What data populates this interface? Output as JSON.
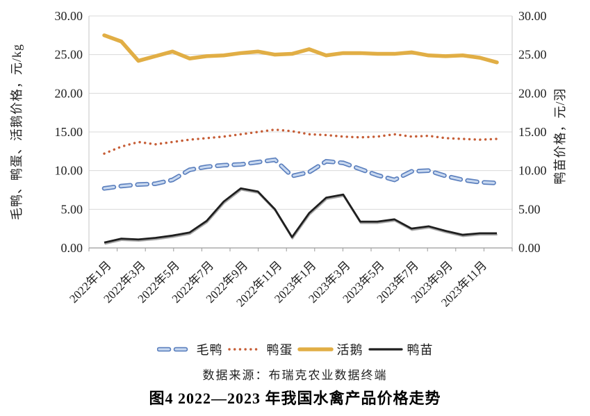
{
  "figure": {
    "source": "数据来源：布瑞克农业数据终端",
    "title": "图4 2022—2023 年我国水禽产品价格走势"
  },
  "legend": {
    "items": [
      {
        "id": "maoya",
        "label": "毛鸭",
        "style": "dashed",
        "color": "#5C80BE",
        "fill": "#C9D9F0"
      },
      {
        "id": "yadan",
        "label": "鸭蛋",
        "style": "dotted",
        "color": "#C65D36",
        "fill": "#C65D36"
      },
      {
        "id": "huoe",
        "label": "活鹅",
        "style": "solid",
        "color": "#E1AE45",
        "fill": "#E1AE45"
      },
      {
        "id": "yamiao",
        "label": "鸭苗",
        "style": "solid",
        "color": "#1f1f1f",
        "fill": "#1f1f1f"
      }
    ]
  },
  "chart_data": {
    "type": "line",
    "title": "图4 2022—2023 年我国水禽产品价格走势",
    "grid": true,
    "legend_position": "bottom",
    "x_categories": [
      "2022年1月",
      "2022年2月",
      "2022年3月",
      "2022年4月",
      "2022年5月",
      "2022年6月",
      "2022年7月",
      "2022年8月",
      "2022年9月",
      "2022年10月",
      "2022年11月",
      "2022年12月",
      "2023年1月",
      "2023年2月",
      "2023年3月",
      "2023年4月",
      "2023年5月",
      "2023年6月",
      "2023年7月",
      "2023年8月",
      "2023年9月",
      "2023年10月",
      "2023年11月",
      "2023年12月"
    ],
    "x_label_every": 2,
    "left_axis": {
      "label": "毛鸭、鸭蛋、活鹅价格，元/kg",
      "range": [
        0,
        30
      ],
      "tick_values": [
        0,
        5,
        10,
        15,
        20,
        25,
        30
      ],
      "tick_labels": [
        "0.00",
        "5.00",
        "10.00",
        "15.00",
        "20.00",
        "25.00",
        "30.00"
      ]
    },
    "right_axis": {
      "label": "鸭苗价格，元/羽",
      "range": [
        0,
        30
      ],
      "tick_values": [
        0,
        5,
        10,
        15,
        20,
        25,
        30
      ],
      "tick_labels": [
        "0.00",
        "5.00",
        "10.00",
        "15.00",
        "20.00",
        "25.00",
        "30.00"
      ]
    },
    "series": [
      {
        "name": "活鹅",
        "id": "huoe",
        "axis": "left",
        "line": "solid",
        "color": "#E1AE45",
        "values": [
          27.5,
          26.7,
          24.2,
          24.8,
          25.4,
          24.5,
          24.8,
          24.9,
          25.2,
          25.4,
          25.0,
          25.1,
          25.7,
          24.9,
          25.2,
          25.2,
          25.1,
          25.1,
          25.3,
          24.9,
          24.8,
          24.9,
          24.6,
          24.0
        ]
      },
      {
        "name": "鸭蛋",
        "id": "yadan",
        "axis": "left",
        "line": "dotted",
        "color": "#C65D36",
        "values": [
          12.2,
          13.1,
          13.7,
          13.4,
          13.7,
          14.0,
          14.2,
          14.4,
          14.7,
          15.0,
          15.3,
          15.1,
          14.7,
          14.6,
          14.4,
          14.3,
          14.4,
          14.7,
          14.4,
          14.5,
          14.2,
          14.1,
          14.0,
          14.1
        ]
      },
      {
        "name": "毛鸭",
        "id": "maoya",
        "axis": "left",
        "line": "dashed",
        "color": "#5C80BE",
        "values": [
          7.7,
          8.0,
          8.2,
          8.3,
          8.8,
          10.1,
          10.5,
          10.7,
          10.8,
          11.1,
          11.4,
          9.3,
          9.8,
          11.2,
          11.0,
          10.2,
          9.4,
          8.8,
          9.9,
          10.0,
          9.3,
          8.8,
          8.5,
          8.4
        ]
      },
      {
        "name": "鸭苗",
        "id": "yamiao",
        "axis": "right",
        "line": "solid",
        "color": "#1f1f1f",
        "values": [
          0.7,
          1.2,
          1.1,
          1.3,
          1.6,
          2.0,
          3.5,
          6.0,
          7.7,
          7.3,
          5.0,
          1.4,
          4.5,
          6.5,
          6.9,
          3.4,
          3.4,
          3.7,
          2.5,
          2.8,
          2.2,
          1.7,
          1.9,
          1.9
        ]
      }
    ]
  }
}
